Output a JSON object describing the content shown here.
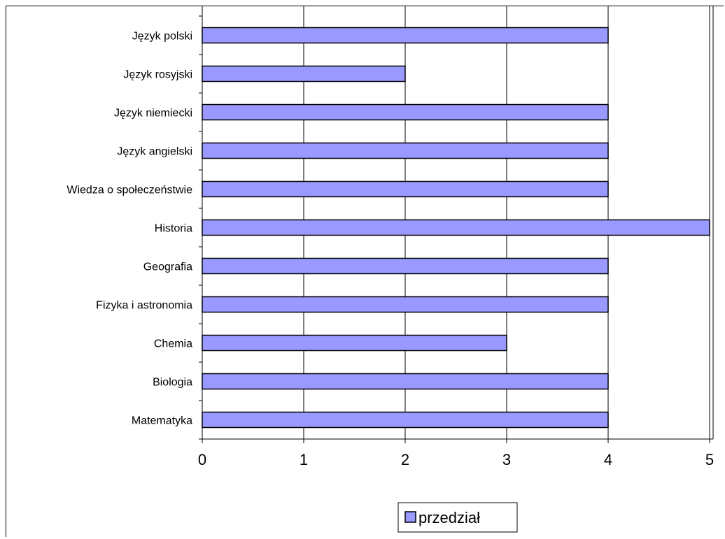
{
  "chart_data": {
    "type": "bar",
    "orientation": "horizontal",
    "categories": [
      "Matematyka",
      "Biologia",
      "Chemia",
      "Fizyka i astronomia",
      "Geografia",
      "Historia",
      "Wiedza o społeczeństwie",
      "Język angielski",
      "Język niemiecki",
      "Język rosyjski",
      "Język polski"
    ],
    "series": [
      {
        "name": "przedział",
        "values": [
          4,
          4,
          3,
          4,
          4,
          5,
          4,
          4,
          4,
          2,
          4
        ]
      }
    ],
    "xlim": [
      0,
      5
    ],
    "xticks": [
      "0",
      "1",
      "2",
      "3",
      "4",
      "5"
    ],
    "grid": true,
    "legend": "bottom-center",
    "colors": {
      "bar_fill": "#9999ff",
      "bar_stroke": "#000000",
      "grid": "#000000"
    }
  }
}
